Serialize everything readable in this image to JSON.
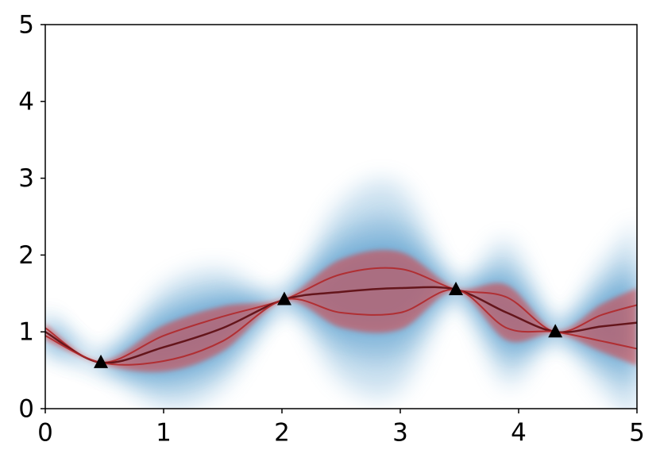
{
  "chart_data": {
    "type": "line",
    "x": [
      0,
      0.47,
      1.0,
      1.5,
      2.02,
      2.5,
      3.0,
      3.47,
      3.9,
      4.31,
      4.7,
      5
    ],
    "series": [
      {
        "color": "#b0282a",
        "values": [
          1.05,
          0.6,
          0.95,
          1.2,
          1.42,
          1.75,
          1.82,
          1.55,
          1.45,
          1.0,
          1.22,
          1.35
        ]
      },
      {
        "color": "#5c0b10",
        "values": [
          1.0,
          0.6,
          0.8,
          1.05,
          1.42,
          1.52,
          1.57,
          1.55,
          1.25,
          1.0,
          1.07,
          1.12
        ]
      },
      {
        "color": "#b0282a",
        "values": [
          0.95,
          0.6,
          0.62,
          0.88,
          1.42,
          1.25,
          1.25,
          1.55,
          1.05,
          1.0,
          0.88,
          0.78
        ]
      }
    ],
    "points": {
      "color": "#000000",
      "x": [
        0.47,
        2.02,
        3.47,
        4.31
      ],
      "y": [
        0.6,
        1.42,
        1.55,
        1.0
      ]
    },
    "band_color": "#e0403f",
    "density_color": "#3a8cc4",
    "xlim": [
      0,
      5
    ],
    "ylim": [
      0,
      5
    ],
    "xticks": [
      0,
      1,
      2,
      3,
      4,
      5
    ],
    "yticks": [
      0,
      1,
      2,
      3,
      4,
      5
    ]
  }
}
